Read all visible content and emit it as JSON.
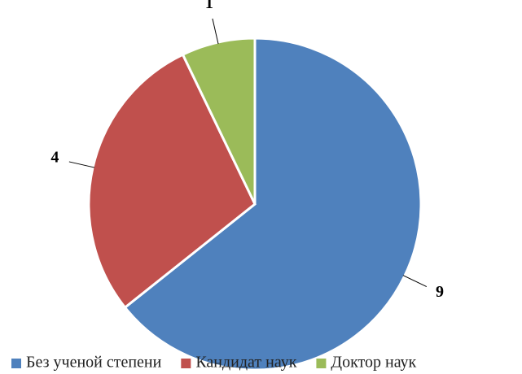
{
  "chart_data": {
    "type": "pie",
    "categories": [
      "Без ученой степени",
      "Кандидат наук",
      "Доктор наук"
    ],
    "values": [
      9,
      4,
      1
    ],
    "colors": [
      "#4f81bd",
      "#c0504d",
      "#9bbb59"
    ],
    "legend": "bottom"
  }
}
